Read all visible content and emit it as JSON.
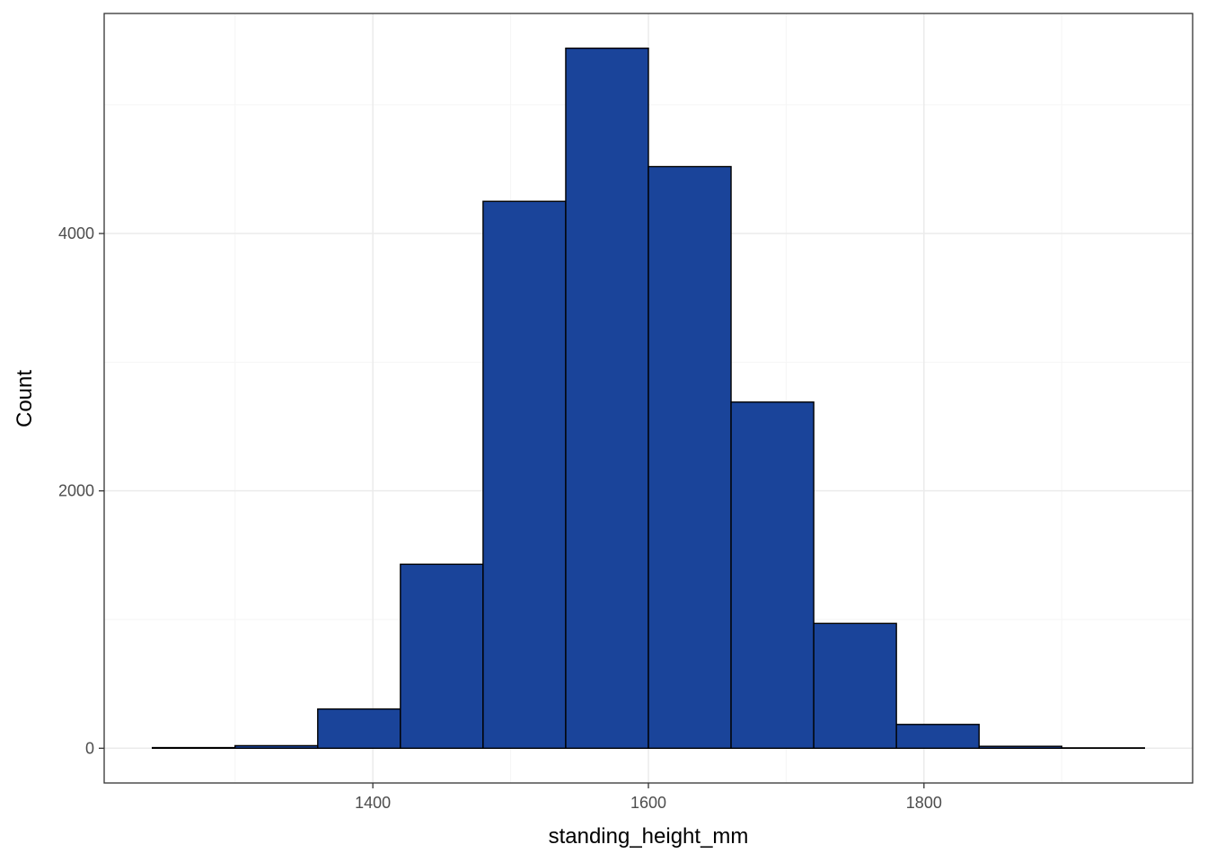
{
  "chart_data": {
    "type": "bar",
    "subtype": "histogram",
    "xlabel": "standing_height_mm",
    "ylabel": "Count",
    "bin_width": 60,
    "bins": [
      {
        "x0": 1240,
        "x1": 1300,
        "count": 5
      },
      {
        "x0": 1300,
        "x1": 1360,
        "count": 20
      },
      {
        "x0": 1360,
        "x1": 1420,
        "count": 305
      },
      {
        "x0": 1420,
        "x1": 1480,
        "count": 1430
      },
      {
        "x0": 1480,
        "x1": 1540,
        "count": 4250
      },
      {
        "x0": 1540,
        "x1": 1600,
        "count": 5440
      },
      {
        "x0": 1600,
        "x1": 1660,
        "count": 4520
      },
      {
        "x0": 1660,
        "x1": 1720,
        "count": 2690
      },
      {
        "x0": 1720,
        "x1": 1780,
        "count": 970
      },
      {
        "x0": 1780,
        "x1": 1840,
        "count": 185
      },
      {
        "x0": 1840,
        "x1": 1900,
        "count": 15
      },
      {
        "x0": 1900,
        "x1": 1960,
        "count": 3
      }
    ],
    "xlim": [
      1205,
      1995
    ],
    "ylim": [
      -270,
      5710
    ],
    "x_ticks": [
      1400,
      1600,
      1800
    ],
    "x_tick_labels": [
      "1400",
      "1600",
      "1800"
    ],
    "x_minor_grid": [
      1300,
      1500,
      1700,
      1900
    ],
    "y_ticks": [
      0,
      2000,
      4000
    ],
    "y_tick_labels": [
      "0",
      "2000",
      "4000"
    ],
    "y_minor_grid": [
      1000,
      3000,
      5000
    ],
    "grid": true,
    "colors": {
      "bar_fill": "#1a449a",
      "bar_outline": "#000000",
      "grid_major": "#ebebeb",
      "grid_minor": "#f5f5f5",
      "panel_border": "#333333",
      "tick_text": "#4d4d4d"
    }
  }
}
